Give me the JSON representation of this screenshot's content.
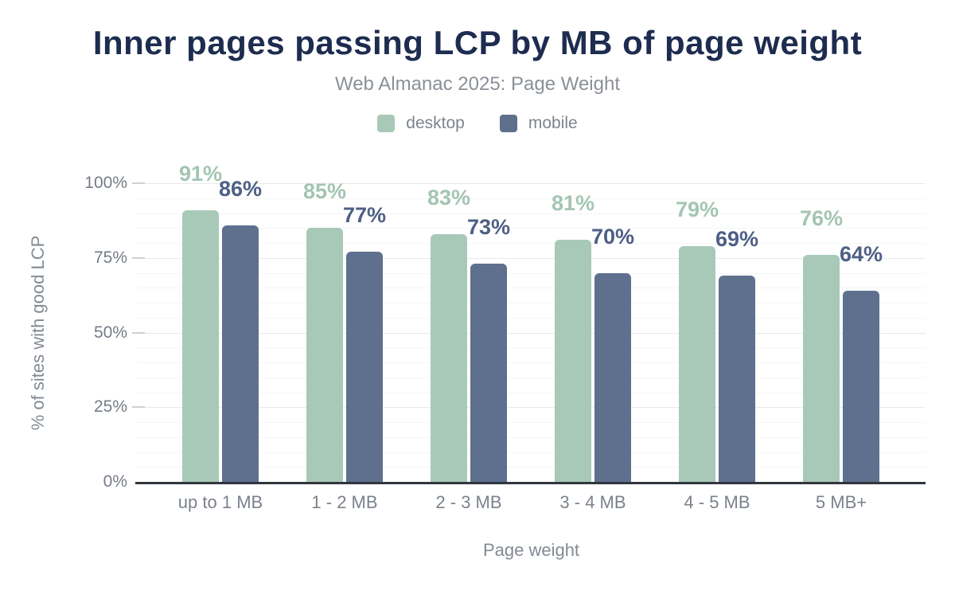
{
  "header": {
    "title": "Inner pages passing LCP by MB of page weight",
    "subtitle": "Web Almanac 2025: Page Weight"
  },
  "legend": {
    "items": [
      {
        "label": "desktop",
        "color": "#a8c9b7"
      },
      {
        "label": "mobile",
        "color": "#5e708e"
      }
    ]
  },
  "chart_data": {
    "type": "bar",
    "title": "Inner pages passing LCP by MB of page weight",
    "subtitle": "Web Almanac 2025: Page Weight",
    "categories": [
      "up to 1 MB",
      "1 - 2 MB",
      "2 - 3 MB",
      "3 - 4 MB",
      "4 - 5 MB",
      "5 MB+"
    ],
    "series": [
      {
        "name": "desktop",
        "values": [
          91,
          85,
          83,
          81,
          79,
          76
        ],
        "bar_color": "#a8c9b7",
        "label_color": "#a3c5b2"
      },
      {
        "name": "mobile",
        "values": [
          86,
          77,
          73,
          70,
          69,
          64
        ],
        "bar_color": "#5e708e",
        "label_color": "#4e5f86"
      }
    ],
    "value_suffix": "%",
    "xlabel": "Page weight",
    "ylabel": "% of sites with good LCP",
    "ylim": [
      0,
      100
    ],
    "yticks": [
      {
        "value": 0,
        "label": "0%"
      },
      {
        "value": 25,
        "label": "25%"
      },
      {
        "value": 50,
        "label": "50%"
      },
      {
        "value": 75,
        "label": "75%"
      },
      {
        "value": 100,
        "label": "100%"
      }
    ],
    "grid": {
      "minor_step_pct": 5,
      "major_step_pct": 25,
      "orientation": "horizontal"
    },
    "legend_position": "top",
    "data_labels": "above bars, colored per series"
  },
  "colors": {
    "background": "#ffffff",
    "title": "#1d2c4f",
    "subtitle": "#8b9098",
    "legend_text": "#7d848e",
    "axis_text": "#7b828c",
    "axis_line": "#31363e",
    "grid_minor": "#f4f5f6",
    "grid_major": "#e7e9eb"
  }
}
